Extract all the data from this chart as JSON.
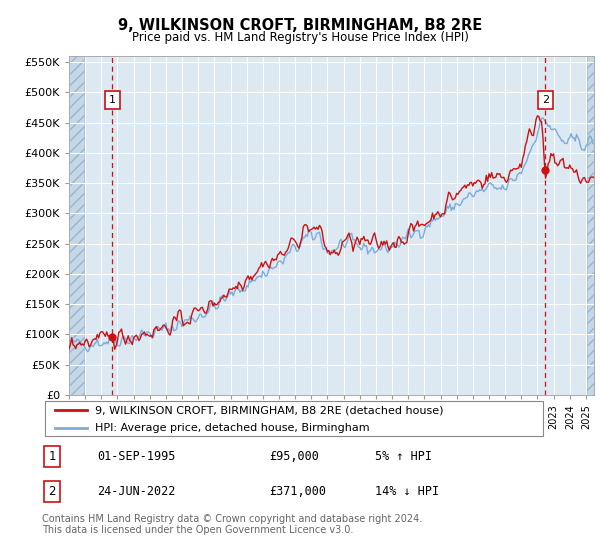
{
  "title": "9, WILKINSON CROFT, BIRMINGHAM, B8 2RE",
  "subtitle": "Price paid vs. HM Land Registry's House Price Index (HPI)",
  "ylabel_ticks": [
    0,
    50000,
    100000,
    150000,
    200000,
    250000,
    300000,
    350000,
    400000,
    450000,
    500000,
    550000
  ],
  "ylabel_labels": [
    "£0",
    "£50K",
    "£100K",
    "£150K",
    "£200K",
    "£250K",
    "£300K",
    "£350K",
    "£400K",
    "£450K",
    "£500K",
    "£550K"
  ],
  "ylim": [
    0,
    560000
  ],
  "xlim_start": 1993.0,
  "xlim_end": 2025.5,
  "sale1_x": 1995.67,
  "sale1_y": 95000,
  "sale2_x": 2022.48,
  "sale2_y": 371000,
  "hpi_color": "#7aadda",
  "price_color": "#cc1111",
  "background_color": "#dce8f2",
  "grid_color": "#ffffff",
  "legend_label1": "9, WILKINSON CROFT, BIRMINGHAM, B8 2RE (detached house)",
  "legend_label2": "HPI: Average price, detached house, Birmingham",
  "annotation1_label": "01-SEP-1995",
  "annotation1_price": "£95,000",
  "annotation1_hpi": "5% ↑ HPI",
  "annotation2_label": "24-JUN-2022",
  "annotation2_price": "£371,000",
  "annotation2_hpi": "14% ↓ HPI",
  "footnote": "Contains HM Land Registry data © Crown copyright and database right 2024.\nThis data is licensed under the Open Government Licence v3.0."
}
